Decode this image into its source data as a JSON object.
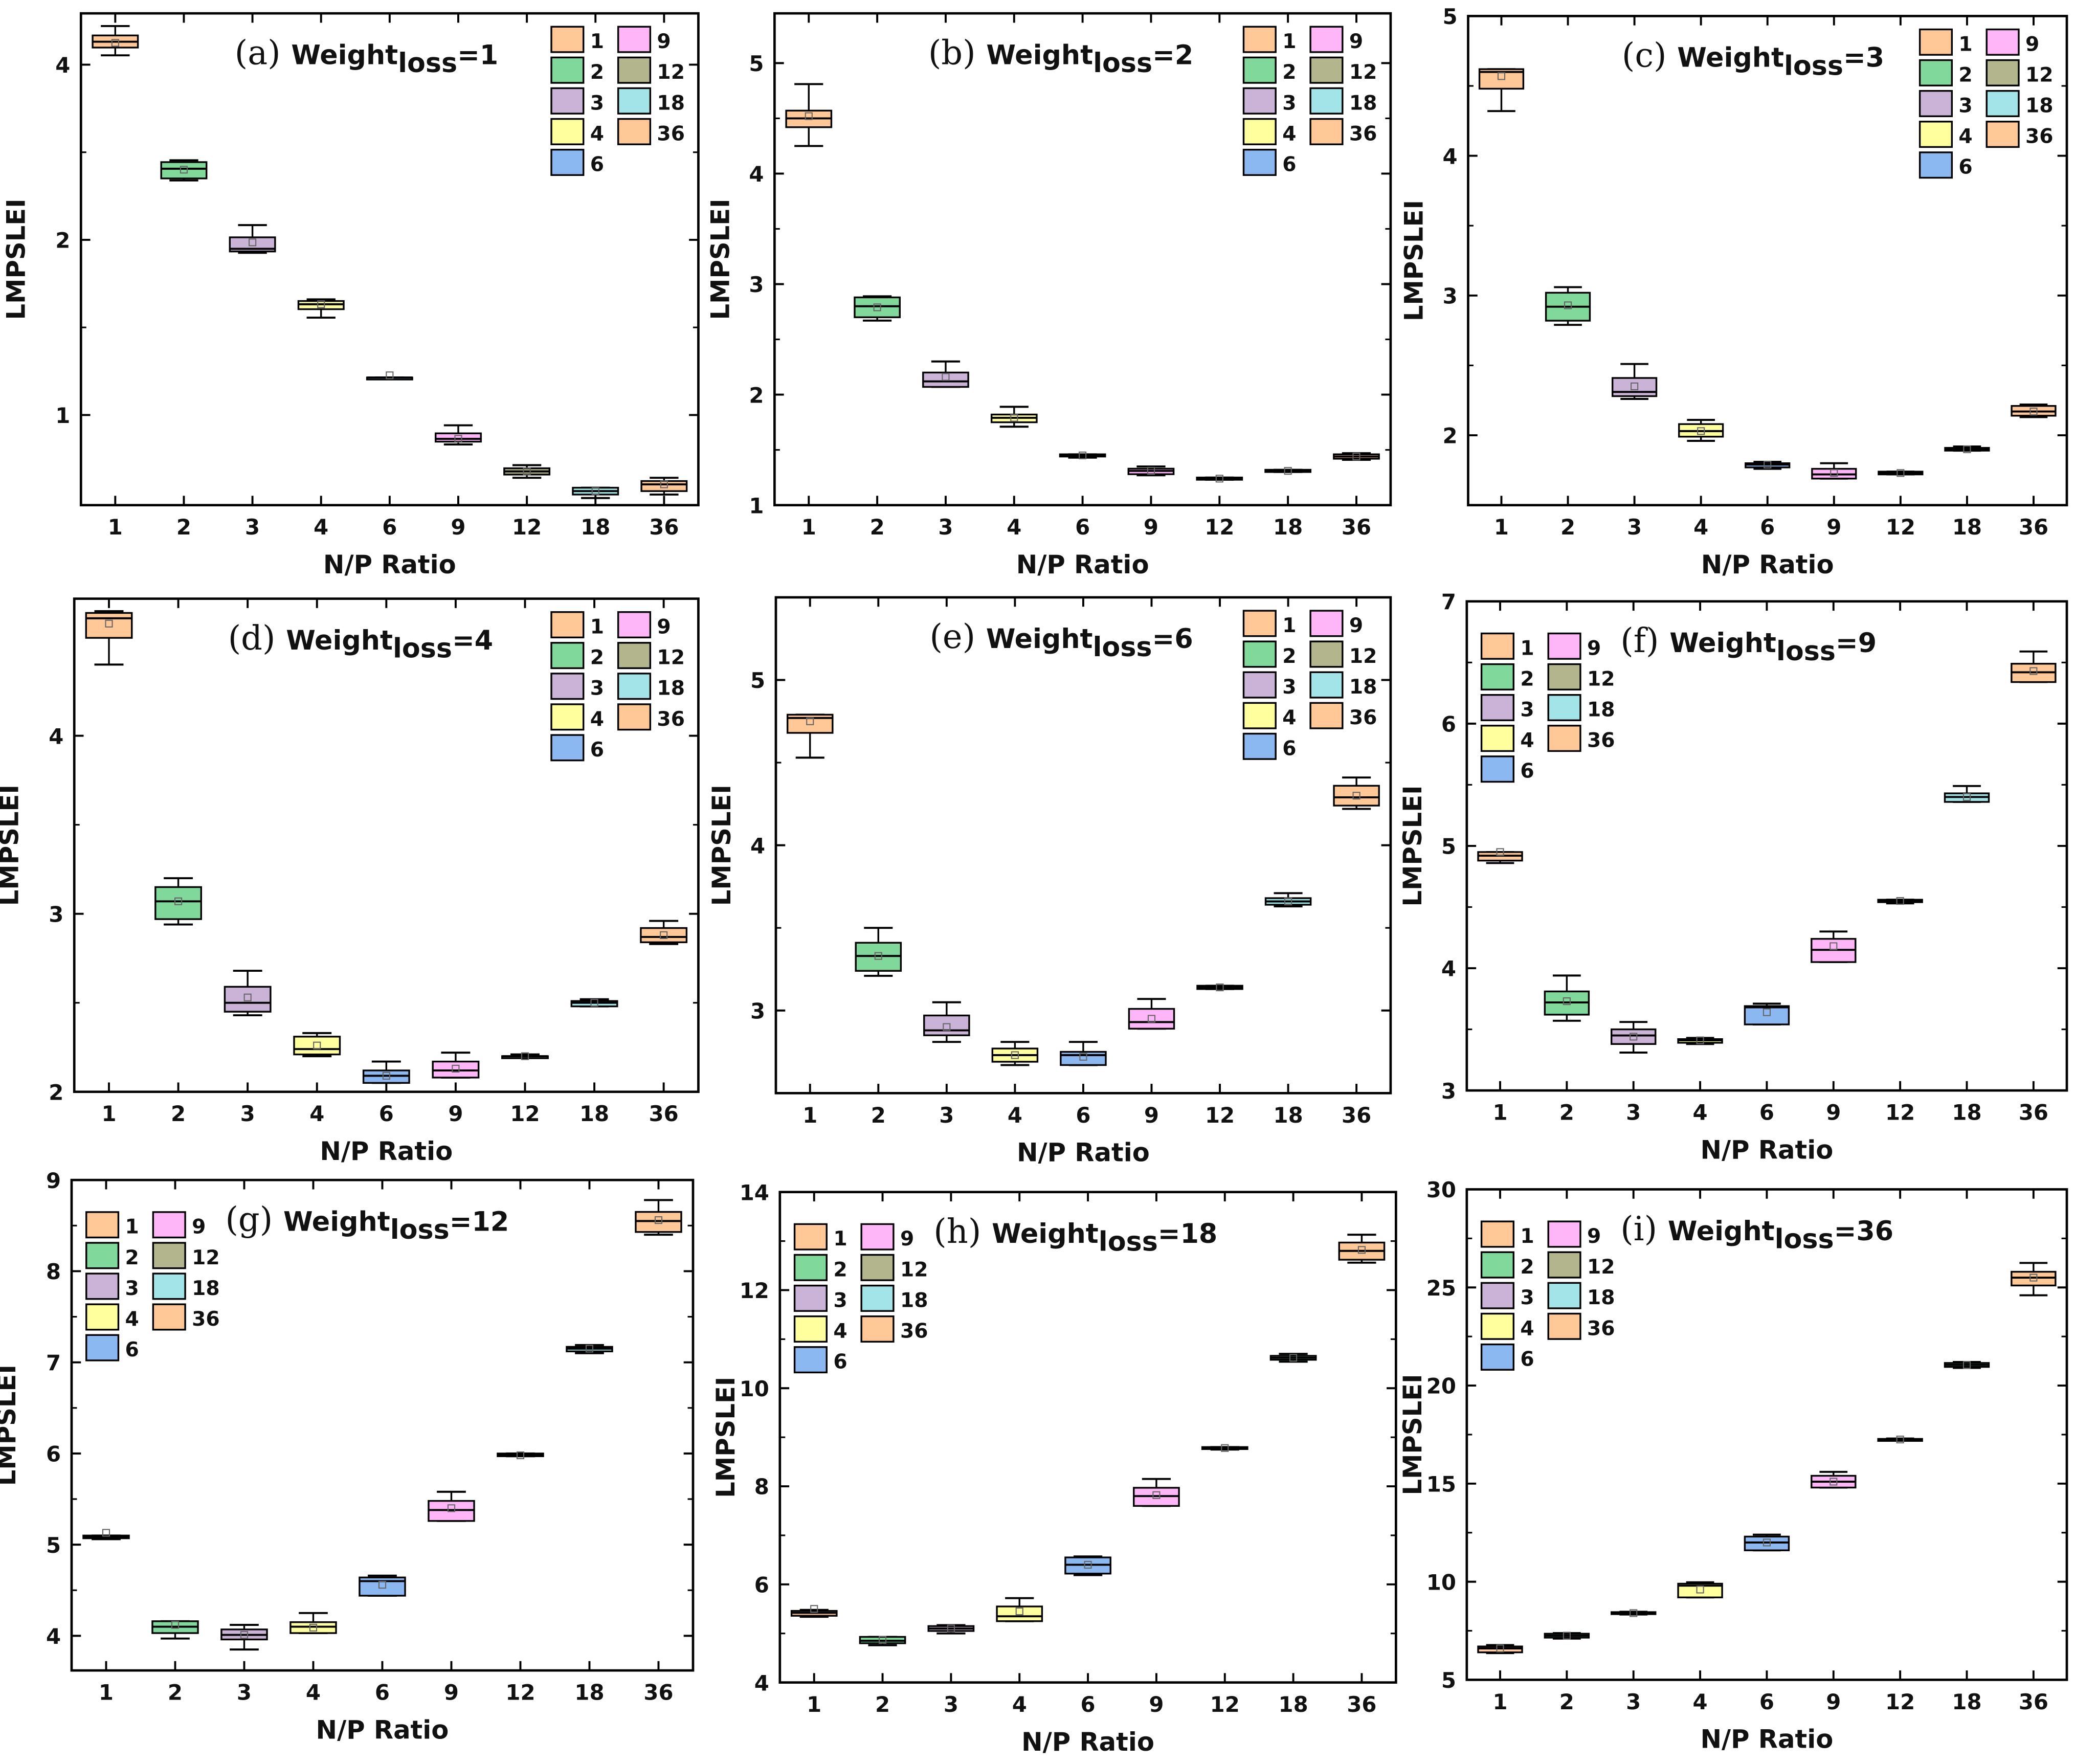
{
  "chart_data": [
    {
      "type": "box",
      "panel": "(a)",
      "title_main": "Weight",
      "title_sub": "loss",
      "title_eq": "=1",
      "xlabel": "N/P Ratio",
      "ylabel": "LMPSLEI",
      "yscale": "log",
      "ylim": [
        0.7,
        4.9
      ],
      "yticks": [
        1,
        2,
        4
      ],
      "legend_placement": "top-right",
      "boxes": [
        [
          4.15,
          4.28,
          4.38,
          4.49,
          4.66,
          4.36
        ],
        [
          2.53,
          2.55,
          2.65,
          2.72,
          2.74,
          2.64
        ],
        [
          1.9,
          1.91,
          1.93,
          2.02,
          2.12,
          1.98
        ],
        [
          1.47,
          1.52,
          1.55,
          1.57,
          1.58,
          1.55
        ],
        [
          1.16,
          1.16,
          1.16,
          1.16,
          1.16,
          1.17
        ],
        [
          0.89,
          0.9,
          0.91,
          0.93,
          0.96,
          0.91
        ],
        [
          0.78,
          0.79,
          0.8,
          0.81,
          0.82,
          0.8
        ],
        [
          0.72,
          0.73,
          0.74,
          0.75,
          0.75,
          0.74
        ],
        [
          0.73,
          0.74,
          0.76,
          0.77,
          0.78,
          0.76
        ]
      ]
    },
    {
      "type": "box",
      "panel": "(b)",
      "title_main": "Weight",
      "title_sub": "loss",
      "title_eq": "=2",
      "xlabel": "N/P Ratio",
      "ylabel": "LMPSLEI",
      "yscale": "linear",
      "ylim": [
        1,
        5.45
      ],
      "yticks": [
        1,
        2,
        3,
        4,
        5
      ],
      "legend_placement": "top-right",
      "boxes": [
        [
          4.25,
          4.42,
          4.5,
          4.57,
          4.81,
          4.52
        ],
        [
          2.67,
          2.7,
          2.8,
          2.88,
          2.89,
          2.79
        ],
        [
          2.07,
          2.07,
          2.12,
          2.2,
          2.3,
          2.16
        ],
        [
          1.71,
          1.75,
          1.79,
          1.82,
          1.89,
          1.79
        ],
        [
          1.43,
          1.44,
          1.45,
          1.46,
          1.46,
          1.45
        ],
        [
          1.27,
          1.28,
          1.31,
          1.33,
          1.35,
          1.31
        ],
        [
          1.23,
          1.23,
          1.24,
          1.25,
          1.25,
          1.24
        ],
        [
          1.3,
          1.3,
          1.31,
          1.32,
          1.32,
          1.31
        ],
        [
          1.41,
          1.42,
          1.44,
          1.46,
          1.47,
          1.44
        ]
      ]
    },
    {
      "type": "box",
      "panel": "(c)",
      "title_main": "Weight",
      "title_sub": "loss",
      "title_eq": "=3",
      "xlabel": "N/P Ratio",
      "ylabel": "LMPSLEI",
      "yscale": "linear",
      "ylim": [
        1.5,
        5
      ],
      "yticks": [
        2,
        3,
        4,
        5
      ],
      "legend_placement": "top-right",
      "boxes": [
        [
          4.32,
          4.48,
          4.6,
          4.62,
          4.62,
          4.57
        ],
        [
          2.79,
          2.82,
          2.92,
          3.02,
          3.06,
          2.93
        ],
        [
          2.26,
          2.28,
          2.31,
          2.41,
          2.51,
          2.35
        ],
        [
          1.96,
          1.99,
          2.03,
          2.08,
          2.11,
          2.03
        ],
        [
          1.76,
          1.77,
          1.79,
          1.8,
          1.81,
          1.79
        ],
        [
          1.69,
          1.69,
          1.72,
          1.76,
          1.8,
          1.73
        ],
        [
          1.72,
          1.72,
          1.73,
          1.74,
          1.74,
          1.73
        ],
        [
          1.89,
          1.89,
          1.9,
          1.91,
          1.92,
          1.9
        ],
        [
          2.13,
          2.14,
          2.17,
          2.21,
          2.22,
          2.17
        ]
      ]
    },
    {
      "type": "box",
      "panel": "(d)",
      "title_main": "Weight",
      "title_sub": "loss",
      "title_eq": "=4",
      "xlabel": "N/P Ratio",
      "ylabel": "LMPSLEI",
      "yscale": "linear",
      "ylim": [
        2,
        4.77
      ],
      "yticks": [
        2,
        3,
        4
      ],
      "legend_placement": "top-right",
      "boxes": [
        [
          4.4,
          4.55,
          4.66,
          4.69,
          4.7,
          4.63
        ],
        [
          2.94,
          2.97,
          3.07,
          3.15,
          3.2,
          3.07
        ],
        [
          2.43,
          2.45,
          2.5,
          2.59,
          2.68,
          2.53
        ],
        [
          2.2,
          2.21,
          2.24,
          2.31,
          2.33,
          2.26
        ],
        [
          2.05,
          2.05,
          2.09,
          2.12,
          2.17,
          2.09
        ],
        [
          2.08,
          2.08,
          2.12,
          2.17,
          2.22,
          2.13
        ],
        [
          2.19,
          2.19,
          2.2,
          2.2,
          2.21,
          2.2
        ],
        [
          2.48,
          2.48,
          2.5,
          2.51,
          2.52,
          2.5
        ],
        [
          2.83,
          2.84,
          2.87,
          2.92,
          2.96,
          2.88
        ]
      ]
    },
    {
      "type": "box",
      "panel": "(e)",
      "title_main": "Weight",
      "title_sub": "loss",
      "title_eq": "=6",
      "xlabel": "N/P Ratio",
      "ylabel": "LMPSLEI",
      "yscale": "linear",
      "ylim": [
        2.5,
        5.5
      ],
      "yticks": [
        3,
        4,
        5
      ],
      "legend_placement": "top-right",
      "boxes": [
        [
          4.53,
          4.68,
          4.77,
          4.79,
          4.79,
          4.75
        ],
        [
          3.21,
          3.24,
          3.33,
          3.41,
          3.5,
          3.33
        ],
        [
          2.81,
          2.85,
          2.88,
          2.97,
          3.05,
          2.9
        ],
        [
          2.67,
          2.69,
          2.73,
          2.77,
          2.81,
          2.73
        ],
        [
          2.67,
          2.67,
          2.73,
          2.75,
          2.81,
          2.72
        ],
        [
          2.89,
          2.89,
          2.93,
          3.01,
          3.07,
          2.95
        ],
        [
          3.13,
          3.13,
          3.14,
          3.15,
          3.15,
          3.14
        ],
        [
          3.63,
          3.64,
          3.66,
          3.68,
          3.71,
          3.66
        ],
        [
          4.22,
          4.24,
          4.29,
          4.36,
          4.41,
          4.3
        ]
      ]
    },
    {
      "type": "box",
      "panel": "(f)",
      "title_main": "Weight",
      "title_sub": "loss",
      "title_eq": "=9",
      "xlabel": "N/P Ratio",
      "ylabel": "LMPSLEI",
      "yscale": "linear",
      "ylim": [
        3,
        7
      ],
      "yticks": [
        3,
        4,
        5,
        6,
        7
      ],
      "legend_placement": "top-left",
      "boxes": [
        [
          4.86,
          4.88,
          4.92,
          4.95,
          4.95,
          4.95
        ],
        [
          3.57,
          3.62,
          3.72,
          3.81,
          3.94,
          3.73
        ],
        [
          3.31,
          3.38,
          3.45,
          3.5,
          3.56,
          3.44
        ],
        [
          3.38,
          3.39,
          3.41,
          3.42,
          3.43,
          3.41
        ],
        [
          3.54,
          3.54,
          3.68,
          3.69,
          3.71,
          3.64
        ],
        [
          4.05,
          4.05,
          4.15,
          4.24,
          4.3,
          4.18
        ],
        [
          4.53,
          4.54,
          4.55,
          4.56,
          4.56,
          4.55
        ],
        [
          5.36,
          5.36,
          5.4,
          5.43,
          5.49,
          5.4
        ],
        [
          6.34,
          6.34,
          6.42,
          6.49,
          6.59,
          6.43
        ]
      ]
    },
    {
      "type": "box",
      "panel": "(g)",
      "title_main": "Weight",
      "title_sub": "loss",
      "title_eq": "=12",
      "xlabel": "N/P Ratio",
      "ylabel": "LMPSLEI",
      "yscale": "linear",
      "ylim": [
        3.62,
        9
      ],
      "yticks": [
        4,
        5,
        6,
        7,
        8,
        9
      ],
      "legend_placement": "top-left",
      "boxes": [
        [
          5.06,
          5.07,
          5.08,
          5.1,
          5.1,
          5.13
        ],
        [
          3.97,
          4.03,
          4.1,
          4.16,
          4.16,
          4.12
        ],
        [
          3.85,
          3.96,
          4.01,
          4.07,
          4.12,
          4.01
        ],
        [
          4.03,
          4.03,
          4.1,
          4.15,
          4.25,
          4.09
        ],
        [
          4.44,
          4.44,
          4.6,
          4.64,
          4.66,
          4.56
        ],
        [
          5.26,
          5.26,
          5.38,
          5.48,
          5.58,
          5.4
        ],
        [
          5.97,
          5.97,
          5.98,
          6.0,
          6.0,
          5.98
        ],
        [
          7.1,
          7.12,
          7.15,
          7.17,
          7.19,
          7.15
        ],
        [
          8.4,
          8.43,
          8.55,
          8.65,
          8.78,
          8.56
        ]
      ]
    },
    {
      "type": "box",
      "panel": "(h)",
      "title_main": "Weight",
      "title_sub": "loss",
      "title_eq": "=18",
      "xlabel": "N/P Ratio",
      "ylabel": "LMPSLEI",
      "yscale": "linear",
      "ylim": [
        4,
        14
      ],
      "yticks": [
        4,
        6,
        8,
        10,
        12,
        14
      ],
      "legend_placement": "top-left",
      "boxes": [
        [
          5.34,
          5.36,
          5.42,
          5.46,
          5.48,
          5.5
        ],
        [
          4.76,
          4.8,
          4.85,
          4.93,
          4.93,
          4.87
        ],
        [
          5.0,
          5.05,
          5.1,
          5.15,
          5.17,
          5.1
        ],
        [
          5.25,
          5.25,
          5.35,
          5.55,
          5.72,
          5.45
        ],
        [
          6.19,
          6.22,
          6.4,
          6.55,
          6.57,
          6.4
        ],
        [
          7.6,
          7.6,
          7.8,
          7.97,
          8.15,
          7.82
        ],
        [
          8.75,
          8.76,
          8.78,
          8.8,
          8.8,
          8.78
        ],
        [
          10.54,
          10.58,
          10.62,
          10.66,
          10.7,
          10.62
        ],
        [
          12.56,
          12.62,
          12.8,
          12.97,
          13.13,
          12.82
        ]
      ]
    },
    {
      "type": "box",
      "panel": "(i)",
      "title_main": "Weight",
      "title_sub": "loss",
      "title_eq": "=36",
      "xlabel": "N/P Ratio",
      "ylabel": "LMPSLEI",
      "yscale": "linear",
      "ylim": [
        5,
        30
      ],
      "yticks": [
        5,
        10,
        15,
        20,
        25,
        30
      ],
      "legend_placement": "top-left",
      "boxes": [
        [
          6.36,
          6.4,
          6.6,
          6.7,
          6.77,
          6.6
        ],
        [
          7.1,
          7.15,
          7.25,
          7.35,
          7.38,
          7.25
        ],
        [
          8.33,
          8.35,
          8.4,
          8.45,
          8.47,
          8.4
        ],
        [
          9.2,
          9.2,
          9.8,
          9.9,
          9.97,
          9.6
        ],
        [
          11.6,
          11.6,
          12.0,
          12.3,
          12.4,
          12.0
        ],
        [
          14.8,
          14.8,
          15.1,
          15.4,
          15.6,
          15.1
        ],
        [
          17.2,
          17.22,
          17.25,
          17.28,
          17.3,
          17.25
        ],
        [
          20.9,
          20.95,
          21.05,
          21.15,
          21.2,
          21.05
        ],
        [
          24.6,
          25.1,
          25.5,
          25.8,
          26.25,
          25.5
        ]
      ]
    }
  ],
  "categories": [
    "1",
    "2",
    "3",
    "4",
    "6",
    "9",
    "12",
    "18",
    "36"
  ],
  "legend": [
    "1",
    "2",
    "3",
    "4",
    "6",
    "9",
    "12",
    "18",
    "36"
  ],
  "colors": [
    "#FFC896",
    "#80D89A",
    "#CBB3D8",
    "#FFFF9E",
    "#8BB8F0",
    "#FFB6F8",
    "#B3B68C",
    "#A3E4E8",
    "#FFC896"
  ]
}
